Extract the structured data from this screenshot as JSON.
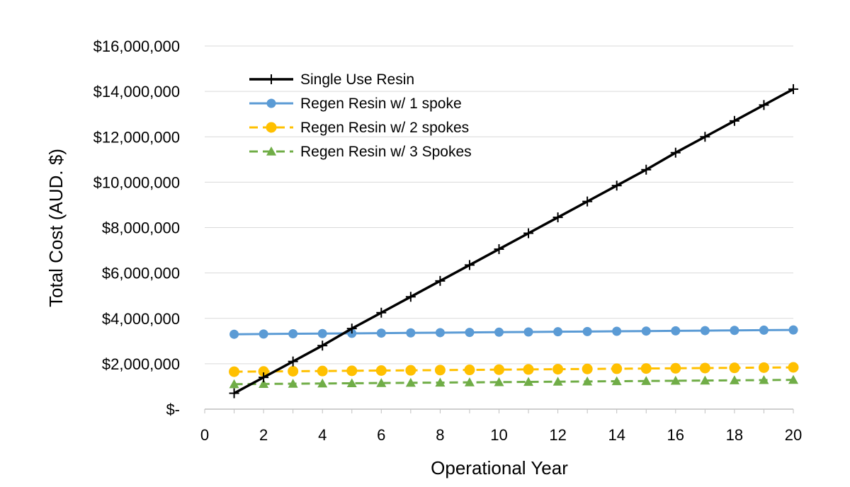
{
  "chart_data": {
    "type": "line",
    "title": "",
    "xlabel": "Operational Year",
    "ylabel": "Total Cost (AUD. $)",
    "xlim": [
      0,
      20
    ],
    "ylim": [
      0,
      16000000
    ],
    "x_ticks": [
      "0",
      "2",
      "4",
      "6",
      "8",
      "10",
      "12",
      "14",
      "16",
      "18",
      "20"
    ],
    "y_ticks": [
      "$-",
      "$2,000,000",
      "$4,000,000",
      "$6,000,000",
      "$8,000,000",
      "$10,000,000",
      "$12,000,000",
      "$14,000,000",
      "$16,000,000"
    ],
    "grid": {
      "horizontal": true,
      "vertical": false
    },
    "legend_position": "top-left",
    "x": [
      1,
      2,
      3,
      4,
      5,
      6,
      7,
      8,
      9,
      10,
      11,
      12,
      13,
      14,
      15,
      16,
      17,
      18,
      19,
      20
    ],
    "series": [
      {
        "name": "Single Use Resin",
        "color": "#000000",
        "marker": "plus",
        "dash": "solid",
        "values": [
          700000,
          1400000,
          2100000,
          2800000,
          3550000,
          4250000,
          4950000,
          5650000,
          6350000,
          7050000,
          7750000,
          8450000,
          9150000,
          9850000,
          10550000,
          11300000,
          12000000,
          12700000,
          13400000,
          14100000
        ]
      },
      {
        "name": "Regen Resin w/ 1 spoke",
        "color": "#5B9BD5",
        "marker": "circle",
        "dash": "solid",
        "values": [
          3300000,
          3310000,
          3320000,
          3330000,
          3340000,
          3350000,
          3360000,
          3370000,
          3380000,
          3390000,
          3400000,
          3410000,
          3420000,
          3430000,
          3440000,
          3450000,
          3460000,
          3470000,
          3480000,
          3490000
        ]
      },
      {
        "name": "Regen Resin w/ 2 spokes",
        "color": "#FFC000",
        "marker": "circle",
        "dash": "dashed",
        "values": [
          1650000,
          1660000,
          1670000,
          1680000,
          1690000,
          1700000,
          1710000,
          1720000,
          1730000,
          1740000,
          1750000,
          1760000,
          1770000,
          1780000,
          1790000,
          1800000,
          1810000,
          1820000,
          1830000,
          1840000
        ]
      },
      {
        "name": "Regen Resin w/ 3 Spokes",
        "color": "#70AD47",
        "marker": "triangle",
        "dash": "dashed",
        "values": [
          1100000,
          1110000,
          1120000,
          1130000,
          1140000,
          1150000,
          1160000,
          1170000,
          1180000,
          1190000,
          1200000,
          1210000,
          1220000,
          1230000,
          1240000,
          1250000,
          1260000,
          1270000,
          1280000,
          1290000
        ]
      }
    ]
  }
}
